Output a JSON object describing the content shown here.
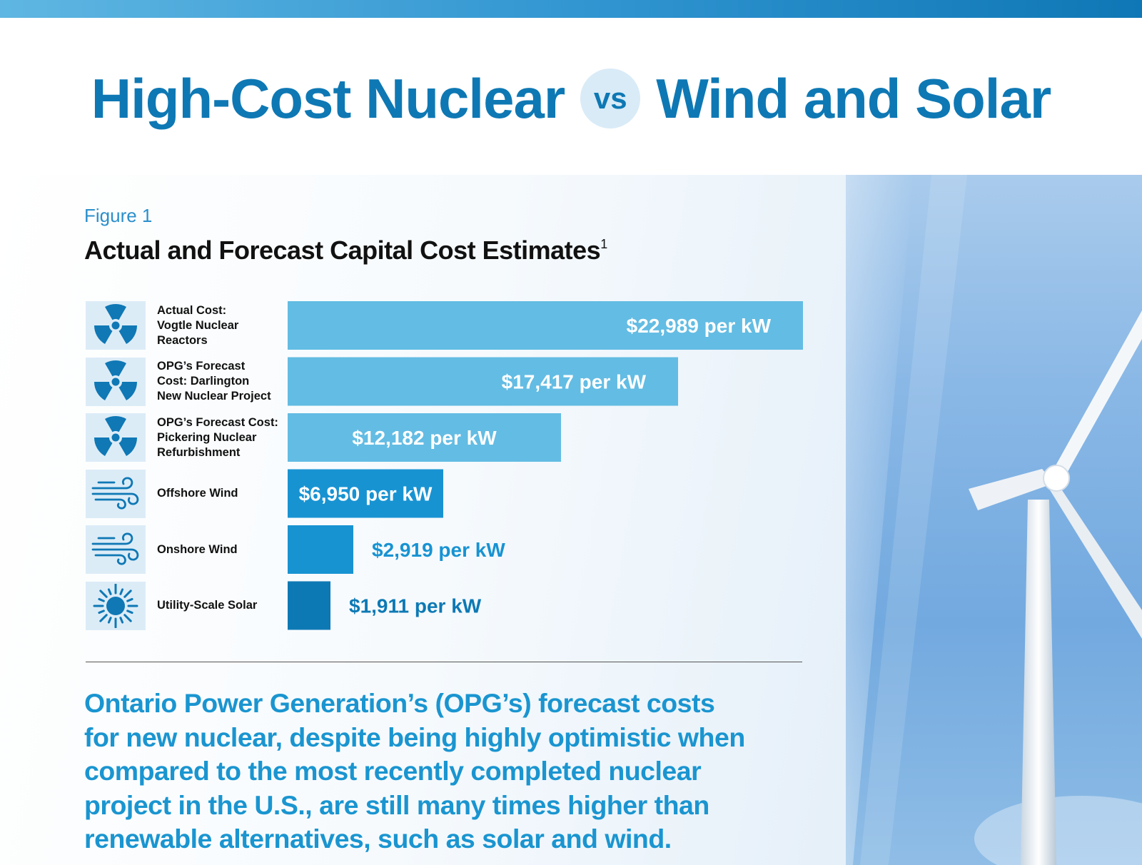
{
  "header": {
    "title_left": "High-Cost Nuclear",
    "vs_label": "vs",
    "title_right": "Wind and Solar"
  },
  "figure": {
    "label": "Figure 1",
    "title": "Actual and Forecast Capital Cost Estimates",
    "footnote_marker": "1"
  },
  "chart_data": {
    "type": "bar",
    "orientation": "horizontal",
    "unit": "per kW",
    "categories": [
      "Actual Cost: Vogtle Nuclear Reactors",
      "OPG's Forecast Cost: Darlington New Nuclear Project",
      "OPG's Forecast Cost: Pickering Nuclear Refurbishment",
      "Offshore Wind",
      "Onshore Wind",
      "Utility-Scale Solar"
    ],
    "category_lines": [
      [
        "Actual Cost:",
        "Vogtle Nuclear",
        "Reactors"
      ],
      [
        "OPG’s Forecast",
        "Cost: Darlington",
        "New Nuclear Project"
      ],
      [
        "OPG’s Forecast Cost:",
        "Pickering Nuclear",
        "Refurbishment"
      ],
      [
        "Offshore Wind"
      ],
      [
        "Onshore Wind"
      ],
      [
        "Utility-Scale Solar"
      ]
    ],
    "values": [
      22989,
      17417,
      12182,
      6950,
      2919,
      1911
    ],
    "data_labels": [
      "$22,989 per kW",
      "$17,417 per kW",
      "$12,182 per kW",
      "$6,950 per kW",
      "$2,919 per kW",
      "$1,911 per kW"
    ],
    "icons": [
      "radiation-icon",
      "radiation-icon",
      "radiation-icon",
      "wind-icon",
      "wind-icon",
      "sun-icon"
    ],
    "colors": [
      "#63bce3",
      "#63bce3",
      "#63bce3",
      "#1893d2",
      "#1893d2",
      "#0d79b4"
    ],
    "label_colors": [
      "#ffffff",
      "#ffffff",
      "#ffffff",
      "#ffffff",
      "#1893d2",
      "#0d79b4"
    ],
    "grid": false,
    "legend": "none"
  },
  "caption": "Ontario Power Generation’s (OPG’s) forecast costs for new nuclear, despite being highly optimistic when compared to the most recently completed nuclear project in the U.S., are still many times higher than renewable alternatives, such as solar and wind.",
  "colors": {
    "brand_blue": "#0e78b4",
    "icon_blue": "#0f78b5",
    "icon_bg": "#dcecf7",
    "caption_blue": "#1a95d0"
  }
}
